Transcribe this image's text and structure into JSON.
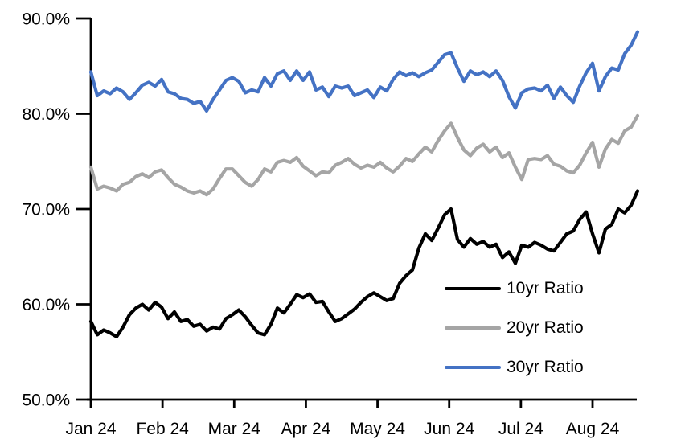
{
  "chart_data": {
    "type": "line",
    "title": "",
    "xlabel": "",
    "ylabel": "",
    "ylim": [
      50,
      90
    ],
    "y_unit": "%",
    "grid": false,
    "legend_position": "inside-lower-right",
    "background": "#ffffff",
    "axis_color": "#000000",
    "y_ticks": [
      {
        "label": "90.0%",
        "value": 90
      },
      {
        "label": "80.0%",
        "value": 80
      },
      {
        "label": "70.0%",
        "value": 70
      },
      {
        "label": "60.0%",
        "value": 60
      },
      {
        "label": "50.0%",
        "value": 50
      }
    ],
    "x_ticks": [
      "Jan 24",
      "Feb 24",
      "Mar 24",
      "Apr 24",
      "May 24",
      "Jun 24",
      "Jul 24",
      "Aug 24"
    ],
    "series": [
      {
        "name": "10yr Ratio",
        "color": "#000000",
        "values": [
          58.2,
          56.8,
          57.3,
          57.0,
          56.6,
          57.6,
          58.9,
          59.6,
          60.0,
          59.4,
          60.2,
          59.7,
          58.5,
          59.2,
          58.2,
          58.4,
          57.7,
          57.9,
          57.2,
          57.6,
          57.4,
          58.5,
          58.9,
          59.4,
          58.7,
          57.8,
          57.0,
          56.8,
          57.9,
          59.6,
          59.1,
          60.0,
          61.0,
          60.7,
          61.1,
          60.2,
          60.3,
          59.2,
          58.2,
          58.5,
          59.0,
          59.5,
          60.2,
          60.8,
          61.2,
          60.8,
          60.4,
          60.6,
          62.2,
          63.0,
          63.6,
          65.9,
          67.4,
          66.7,
          68.0,
          69.4,
          70.0,
          66.8,
          66.0,
          66.9,
          66.3,
          66.6,
          66.0,
          66.3,
          64.9,
          65.5,
          64.3,
          66.2,
          66.0,
          66.5,
          66.2,
          65.8,
          65.6,
          66.5,
          67.4,
          67.7,
          68.9,
          69.7,
          67.4,
          65.4,
          67.9,
          68.4,
          70.0,
          69.6,
          70.4,
          71.9
        ]
      },
      {
        "name": "20yr Ratio",
        "color": "#A5A5A5",
        "values": [
          74.4,
          72.1,
          72.4,
          72.2,
          71.9,
          72.6,
          72.8,
          73.4,
          73.7,
          73.3,
          73.9,
          74.1,
          73.3,
          72.6,
          72.3,
          71.9,
          71.7,
          71.9,
          71.5,
          72.1,
          73.2,
          74.2,
          74.2,
          73.5,
          72.8,
          72.4,
          73.1,
          74.2,
          73.9,
          74.9,
          75.1,
          74.9,
          75.4,
          74.5,
          74.0,
          73.5,
          73.9,
          73.8,
          74.6,
          74.9,
          75.3,
          74.7,
          74.3,
          74.6,
          74.4,
          74.9,
          74.3,
          73.9,
          74.5,
          75.3,
          75.0,
          75.8,
          76.5,
          76.0,
          77.2,
          78.2,
          79.0,
          77.5,
          76.2,
          75.6,
          76.4,
          76.8,
          76.0,
          76.5,
          75.4,
          75.9,
          74.4,
          73.1,
          75.2,
          75.3,
          75.2,
          75.6,
          74.7,
          74.5,
          74.0,
          73.8,
          74.6,
          75.9,
          77.0,
          74.4,
          76.3,
          77.3,
          76.9,
          78.2,
          78.6,
          79.8
        ]
      },
      {
        "name": "30yr Ratio",
        "color": "#4472C4",
        "values": [
          84.4,
          81.9,
          82.4,
          82.1,
          82.7,
          82.3,
          81.5,
          82.2,
          83.0,
          83.3,
          82.9,
          83.6,
          82.3,
          82.1,
          81.6,
          81.5,
          81.1,
          81.3,
          80.3,
          81.5,
          82.5,
          83.5,
          83.8,
          83.4,
          82.2,
          82.5,
          82.3,
          83.8,
          82.9,
          84.2,
          84.5,
          83.5,
          84.5,
          83.5,
          84.4,
          82.5,
          82.8,
          81.8,
          82.9,
          82.7,
          82.9,
          81.9,
          82.2,
          82.5,
          81.7,
          82.8,
          82.4,
          83.6,
          84.4,
          84.0,
          84.3,
          83.9,
          84.3,
          84.6,
          85.4,
          86.2,
          86.4,
          84.8,
          83.4,
          84.5,
          84.1,
          84.4,
          83.9,
          84.5,
          83.5,
          81.8,
          80.6,
          82.2,
          82.6,
          82.7,
          82.4,
          83.0,
          81.6,
          82.8,
          81.9,
          81.2,
          82.9,
          84.3,
          85.3,
          82.4,
          83.9,
          84.8,
          84.6,
          86.3,
          87.2,
          88.6
        ]
      }
    ]
  }
}
